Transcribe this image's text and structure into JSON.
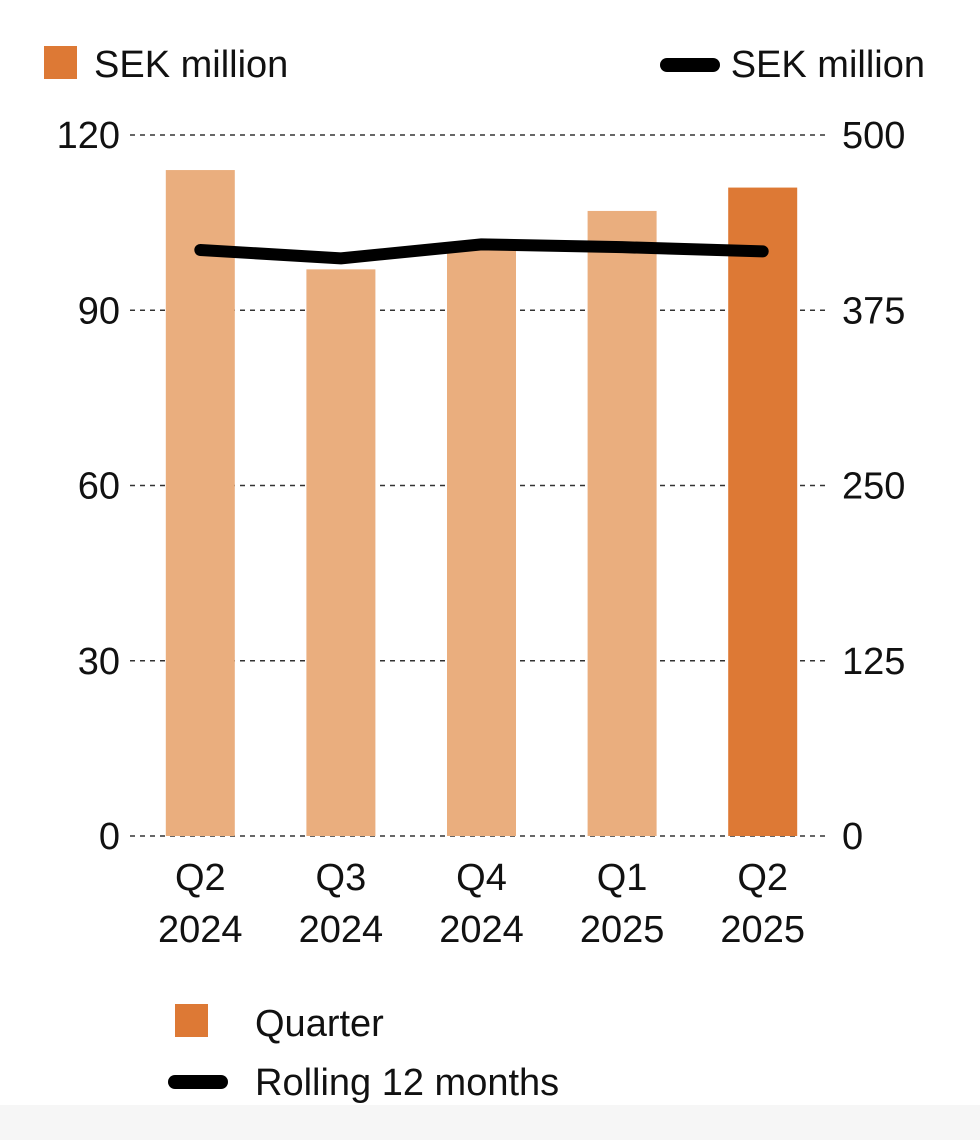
{
  "chart_data": {
    "type": "bar",
    "categories": [
      "Q2 2024",
      "Q3 2024",
      "Q4 2024",
      "Q1 2025",
      "Q2 2025"
    ],
    "category_lines": [
      [
        "Q2",
        "2024"
      ],
      [
        "Q3",
        "2024"
      ],
      [
        "Q4",
        "2024"
      ],
      [
        "Q1",
        "2025"
      ],
      [
        "Q2",
        "2025"
      ]
    ],
    "series": [
      {
        "name": "Quarter",
        "type": "bar",
        "axis": "left",
        "values": [
          114,
          97,
          101,
          107,
          111
        ]
      },
      {
        "name": "Rolling 12 months",
        "type": "line",
        "axis": "right",
        "values": [
          418,
          412,
          422,
          420,
          417
        ]
      }
    ],
    "y_left": {
      "label": "SEK million",
      "ylim": [
        0,
        120
      ],
      "ticks": [
        0,
        30,
        60,
        90,
        120
      ]
    },
    "y_right": {
      "label": "SEK million",
      "ylim": [
        0,
        500
      ],
      "ticks": [
        0,
        125,
        250,
        375,
        500
      ]
    },
    "grid": true,
    "legend_position": "bottom-left",
    "colors": {
      "bar_highlight": "#dd7935",
      "bar_normal": "#eaae7e",
      "line": "#000000",
      "axis_text": "#111111",
      "grid": "#333333"
    }
  }
}
